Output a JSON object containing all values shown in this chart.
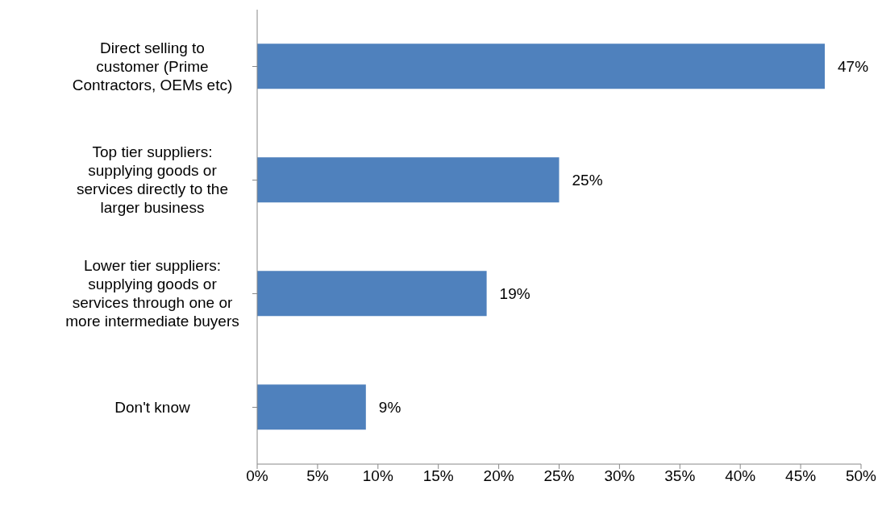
{
  "chart_data": {
    "type": "bar",
    "orientation": "horizontal",
    "categories": [
      "Direct selling to customer (Prime Contractors, OEMs etc)",
      "Top tier suppliers: supplying goods or services directly to the larger business",
      "Lower tier suppliers: supplying goods or services through one or more intermediate buyers",
      "Don't know"
    ],
    "values": [
      47,
      25,
      19,
      9
    ],
    "value_labels": [
      "47%",
      "25%",
      "19%",
      "9%"
    ],
    "color": "#4f81bd",
    "xlim": [
      0,
      50
    ],
    "xticks": [
      {
        "value": 0,
        "label": "0%"
      },
      {
        "value": 5,
        "label": "5%"
      },
      {
        "value": 10,
        "label": "10%"
      },
      {
        "value": 15,
        "label": "15%"
      },
      {
        "value": 20,
        "label": "20%"
      },
      {
        "value": 25,
        "label": "25%"
      },
      {
        "value": 30,
        "label": "30%"
      },
      {
        "value": 35,
        "label": "35%"
      },
      {
        "value": 40,
        "label": "40%"
      },
      {
        "value": 45,
        "label": "45%"
      },
      {
        "value": 50,
        "label": "50%"
      }
    ],
    "grid": false,
    "legend": false
  }
}
